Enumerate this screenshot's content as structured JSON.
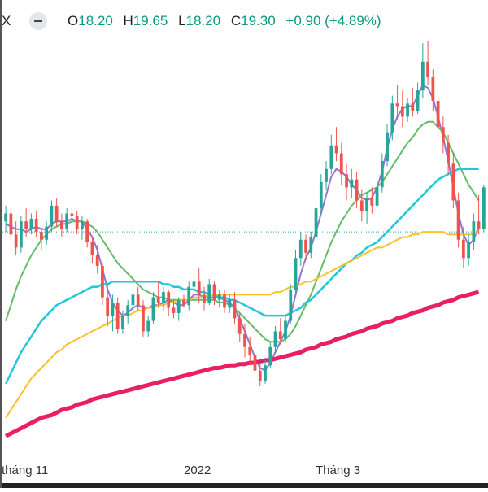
{
  "legend": {
    "symbol_tail": "X",
    "open_label": "O",
    "open": "18.20",
    "high_label": "H",
    "high": "19.65",
    "low_label": "L",
    "low": "18.20",
    "close_label": "C",
    "close": "19.30",
    "change": "+0.90 (+4.89%)",
    "up_color": "#089981"
  },
  "chart_data": {
    "type": "candlestick",
    "x_ticks": [
      "tháng 11",
      "2022",
      "Tháng 3"
    ],
    "price_guide": 15.2,
    "colors": {
      "up": "#26a69a",
      "down": "#ef5350",
      "ma_short": "#9575cd",
      "ma_20": "#66bb6a",
      "ma_50": "#26c6da",
      "ma_100": "#fbc02d",
      "ma_200": "#e91e63"
    },
    "ylim": [
      6.6,
      22.5
    ],
    "candles": [
      {
        "o": 15.6,
        "h": 16.2,
        "l": 15.2,
        "c": 15.9
      },
      {
        "o": 15.9,
        "h": 16.1,
        "l": 14.9,
        "c": 15.1
      },
      {
        "o": 15.1,
        "h": 15.6,
        "l": 14.3,
        "c": 14.6
      },
      {
        "o": 14.6,
        "h": 15.8,
        "l": 14.4,
        "c": 15.6
      },
      {
        "o": 15.6,
        "h": 16.1,
        "l": 15.0,
        "c": 15.3
      },
      {
        "o": 15.3,
        "h": 15.9,
        "l": 15.1,
        "c": 15.7
      },
      {
        "o": 15.7,
        "h": 16.0,
        "l": 15.0,
        "c": 15.2
      },
      {
        "o": 15.2,
        "h": 15.4,
        "l": 14.5,
        "c": 14.9
      },
      {
        "o": 14.9,
        "h": 15.6,
        "l": 14.7,
        "c": 15.4
      },
      {
        "o": 15.4,
        "h": 16.4,
        "l": 15.2,
        "c": 16.2
      },
      {
        "o": 16.2,
        "h": 16.5,
        "l": 15.4,
        "c": 15.6
      },
      {
        "o": 15.6,
        "h": 15.9,
        "l": 15.0,
        "c": 15.3
      },
      {
        "o": 15.3,
        "h": 16.1,
        "l": 15.2,
        "c": 15.9
      },
      {
        "o": 15.9,
        "h": 16.2,
        "l": 15.5,
        "c": 15.8
      },
      {
        "o": 15.8,
        "h": 16.0,
        "l": 15.1,
        "c": 15.3
      },
      {
        "o": 15.3,
        "h": 15.8,
        "l": 14.9,
        "c": 15.6
      },
      {
        "o": 15.6,
        "h": 15.7,
        "l": 14.6,
        "c": 14.8
      },
      {
        "o": 14.8,
        "h": 15.0,
        "l": 14.0,
        "c": 14.3
      },
      {
        "o": 14.3,
        "h": 14.7,
        "l": 13.6,
        "c": 13.9
      },
      {
        "o": 13.9,
        "h": 14.0,
        "l": 12.4,
        "c": 12.7
      },
      {
        "o": 12.7,
        "h": 13.2,
        "l": 11.6,
        "c": 12.0
      },
      {
        "o": 12.0,
        "h": 12.8,
        "l": 11.4,
        "c": 12.5
      },
      {
        "o": 12.5,
        "h": 12.7,
        "l": 11.3,
        "c": 11.5
      },
      {
        "o": 11.5,
        "h": 12.2,
        "l": 11.3,
        "c": 12.0
      },
      {
        "o": 12.0,
        "h": 12.6,
        "l": 11.7,
        "c": 12.4
      },
      {
        "o": 12.4,
        "h": 13.0,
        "l": 12.2,
        "c": 12.8
      },
      {
        "o": 12.8,
        "h": 13.1,
        "l": 12.2,
        "c": 12.4
      },
      {
        "o": 12.4,
        "h": 12.6,
        "l": 11.2,
        "c": 11.4
      },
      {
        "o": 11.4,
        "h": 12.0,
        "l": 11.2,
        "c": 11.8
      },
      {
        "o": 11.8,
        "h": 12.9,
        "l": 11.7,
        "c": 12.7
      },
      {
        "o": 12.7,
        "h": 13.3,
        "l": 12.3,
        "c": 12.5
      },
      {
        "o": 12.5,
        "h": 13.1,
        "l": 12.2,
        "c": 12.9
      },
      {
        "o": 12.9,
        "h": 13.0,
        "l": 12.0,
        "c": 12.3
      },
      {
        "o": 12.3,
        "h": 12.6,
        "l": 11.9,
        "c": 12.1
      },
      {
        "o": 12.1,
        "h": 12.7,
        "l": 11.8,
        "c": 12.6
      },
      {
        "o": 12.6,
        "h": 12.8,
        "l": 12.3,
        "c": 12.4
      },
      {
        "o": 12.4,
        "h": 13.3,
        "l": 12.2,
        "c": 13.1
      },
      {
        "o": 13.1,
        "h": 15.5,
        "l": 12.8,
        "c": 13.3
      },
      {
        "o": 13.3,
        "h": 13.8,
        "l": 12.5,
        "c": 12.8
      },
      {
        "o": 12.8,
        "h": 13.1,
        "l": 12.2,
        "c": 12.5
      },
      {
        "o": 12.5,
        "h": 13.4,
        "l": 12.4,
        "c": 13.2
      },
      {
        "o": 13.2,
        "h": 13.3,
        "l": 12.4,
        "c": 12.6
      },
      {
        "o": 12.6,
        "h": 13.0,
        "l": 12.3,
        "c": 12.8
      },
      {
        "o": 12.8,
        "h": 13.0,
        "l": 12.1,
        "c": 12.3
      },
      {
        "o": 12.3,
        "h": 12.8,
        "l": 12.1,
        "c": 12.6
      },
      {
        "o": 12.6,
        "h": 12.9,
        "l": 11.7,
        "c": 11.9
      },
      {
        "o": 11.9,
        "h": 12.1,
        "l": 11.0,
        "c": 11.3
      },
      {
        "o": 11.3,
        "h": 11.7,
        "l": 10.4,
        "c": 10.8
      },
      {
        "o": 10.8,
        "h": 11.2,
        "l": 10.1,
        "c": 10.5
      },
      {
        "o": 10.5,
        "h": 10.7,
        "l": 9.6,
        "c": 9.9
      },
      {
        "o": 9.9,
        "h": 10.2,
        "l": 9.3,
        "c": 9.5
      },
      {
        "o": 9.5,
        "h": 10.3,
        "l": 9.4,
        "c": 10.1
      },
      {
        "o": 10.1,
        "h": 11.0,
        "l": 10.0,
        "c": 10.8
      },
      {
        "o": 10.8,
        "h": 11.6,
        "l": 10.6,
        "c": 11.4
      },
      {
        "o": 11.4,
        "h": 11.9,
        "l": 10.9,
        "c": 11.1
      },
      {
        "o": 11.1,
        "h": 12.0,
        "l": 11.0,
        "c": 11.8
      },
      {
        "o": 11.8,
        "h": 13.2,
        "l": 11.7,
        "c": 13.0
      },
      {
        "o": 13.0,
        "h": 14.5,
        "l": 12.8,
        "c": 14.2
      },
      {
        "o": 14.2,
        "h": 15.2,
        "l": 13.9,
        "c": 14.9
      },
      {
        "o": 14.9,
        "h": 15.1,
        "l": 14.1,
        "c": 14.4
      },
      {
        "o": 14.4,
        "h": 15.2,
        "l": 14.2,
        "c": 15.0
      },
      {
        "o": 15.0,
        "h": 16.4,
        "l": 14.9,
        "c": 16.1
      },
      {
        "o": 16.1,
        "h": 17.4,
        "l": 15.9,
        "c": 17.1
      },
      {
        "o": 17.1,
        "h": 17.9,
        "l": 16.8,
        "c": 17.6
      },
      {
        "o": 17.6,
        "h": 18.9,
        "l": 17.4,
        "c": 18.5
      },
      {
        "o": 18.5,
        "h": 19.2,
        "l": 17.9,
        "c": 18.2
      },
      {
        "o": 18.2,
        "h": 18.6,
        "l": 17.0,
        "c": 17.4
      },
      {
        "o": 17.4,
        "h": 17.8,
        "l": 16.4,
        "c": 16.9
      },
      {
        "o": 16.9,
        "h": 17.6,
        "l": 16.5,
        "c": 17.2
      },
      {
        "o": 17.2,
        "h": 17.5,
        "l": 16.1,
        "c": 16.4
      },
      {
        "o": 16.4,
        "h": 16.8,
        "l": 15.6,
        "c": 16.0
      },
      {
        "o": 16.0,
        "h": 16.7,
        "l": 15.5,
        "c": 16.5
      },
      {
        "o": 16.5,
        "h": 16.9,
        "l": 15.9,
        "c": 16.2
      },
      {
        "o": 16.2,
        "h": 17.1,
        "l": 16.1,
        "c": 16.9
      },
      {
        "o": 16.9,
        "h": 18.2,
        "l": 16.7,
        "c": 17.9
      },
      {
        "o": 17.9,
        "h": 19.3,
        "l": 17.7,
        "c": 19.0
      },
      {
        "o": 19.0,
        "h": 20.4,
        "l": 18.7,
        "c": 20.1
      },
      {
        "o": 20.1,
        "h": 20.8,
        "l": 19.5,
        "c": 20.0
      },
      {
        "o": 20.0,
        "h": 20.6,
        "l": 19.2,
        "c": 19.6
      },
      {
        "o": 19.6,
        "h": 20.3,
        "l": 19.4,
        "c": 20.1
      },
      {
        "o": 20.1,
        "h": 20.7,
        "l": 19.6,
        "c": 19.8
      },
      {
        "o": 19.8,
        "h": 20.9,
        "l": 19.7,
        "c": 20.6
      },
      {
        "o": 20.6,
        "h": 22.4,
        "l": 20.3,
        "c": 21.7
      },
      {
        "o": 21.7,
        "h": 22.5,
        "l": 20.8,
        "c": 21.1
      },
      {
        "o": 21.1,
        "h": 21.4,
        "l": 19.8,
        "c": 20.2
      },
      {
        "o": 20.2,
        "h": 20.5,
        "l": 18.9,
        "c": 19.2
      },
      {
        "o": 19.2,
        "h": 19.6,
        "l": 18.2,
        "c": 18.6
      },
      {
        "o": 18.6,
        "h": 18.9,
        "l": 17.4,
        "c": 17.8
      },
      {
        "o": 17.8,
        "h": 18.2,
        "l": 16.1,
        "c": 16.4
      },
      {
        "o": 16.4,
        "h": 16.7,
        "l": 14.6,
        "c": 14.9
      },
      {
        "o": 14.9,
        "h": 15.4,
        "l": 13.8,
        "c": 14.2
      },
      {
        "o": 14.2,
        "h": 15.1,
        "l": 13.9,
        "c": 14.8
      },
      {
        "o": 14.8,
        "h": 15.9,
        "l": 14.5,
        "c": 15.6
      },
      {
        "o": 15.6,
        "h": 16.6,
        "l": 15.1,
        "c": 15.3
      },
      {
        "o": 15.3,
        "h": 17.0,
        "l": 15.2,
        "c": 16.9
      }
    ],
    "indicators": [
      {
        "id": "ma_short",
        "width": 2,
        "values": [
          15.5,
          15.4,
          15.3,
          15.3,
          15.2,
          15.3,
          15.4,
          15.3,
          15.3,
          15.5,
          15.6,
          15.6,
          15.6,
          15.7,
          15.6,
          15.6,
          15.3,
          15.0,
          14.5,
          13.8,
          13.0,
          12.5,
          12.2,
          12.0,
          12.1,
          12.3,
          12.4,
          12.3,
          12.3,
          12.4,
          12.4,
          12.5,
          12.6,
          12.5,
          12.4,
          12.4,
          12.6,
          12.8,
          12.8,
          12.7,
          12.7,
          12.7,
          12.7,
          12.6,
          12.5,
          12.3,
          11.9,
          11.4,
          10.9,
          10.4,
          10.0,
          9.9,
          10.2,
          10.6,
          11.0,
          11.4,
          12.0,
          12.8,
          13.6,
          14.2,
          14.6,
          15.2,
          15.9,
          16.6,
          17.3,
          17.6,
          17.5,
          17.3,
          17.0,
          16.8,
          16.5,
          16.4,
          16.5,
          16.9,
          17.5,
          18.4,
          19.1,
          19.6,
          19.9,
          20.0,
          20.0,
          20.4,
          20.8,
          20.7,
          20.3,
          19.6,
          18.8,
          17.9,
          16.9,
          15.9,
          15.1,
          14.7,
          14.9,
          15.4
        ]
      },
      {
        "id": "ma_20",
        "width": 2,
        "values": [
          11.8,
          12.4,
          13.0,
          13.5,
          13.9,
          14.3,
          14.6,
          14.9,
          15.1,
          15.3,
          15.4,
          15.5,
          15.5,
          15.6,
          15.6,
          15.6,
          15.5,
          15.4,
          15.2,
          14.9,
          14.6,
          14.3,
          14.0,
          13.8,
          13.6,
          13.4,
          13.2,
          13.0,
          12.9,
          12.8,
          12.7,
          12.7,
          12.6,
          12.6,
          12.6,
          12.6,
          12.6,
          12.6,
          12.6,
          12.6,
          12.6,
          12.6,
          12.5,
          12.5,
          12.4,
          12.3,
          12.1,
          11.9,
          11.7,
          11.5,
          11.3,
          11.1,
          11.0,
          11.0,
          11.0,
          11.1,
          11.3,
          11.6,
          12.0,
          12.4,
          12.8,
          13.3,
          13.8,
          14.3,
          14.8,
          15.2,
          15.6,
          15.9,
          16.2,
          16.4,
          16.6,
          16.7,
          16.8,
          16.9,
          17.1,
          17.4,
          17.7,
          18.0,
          18.3,
          18.6,
          18.8,
          19.1,
          19.3,
          19.4,
          19.4,
          19.2,
          19.0,
          18.6,
          18.2,
          17.8,
          17.4,
          17.0,
          16.7,
          16.4
        ]
      },
      {
        "id": "ma_50",
        "width": 2.5,
        "values": [
          9.4,
          9.8,
          10.2,
          10.6,
          10.9,
          11.2,
          11.5,
          11.8,
          12.0,
          12.2,
          12.4,
          12.5,
          12.6,
          12.7,
          12.8,
          12.9,
          13.0,
          13.1,
          13.1,
          13.2,
          13.2,
          13.3,
          13.3,
          13.3,
          13.3,
          13.3,
          13.3,
          13.3,
          13.3,
          13.3,
          13.3,
          13.2,
          13.2,
          13.1,
          13.1,
          13.0,
          13.0,
          13.0,
          12.9,
          12.9,
          12.8,
          12.8,
          12.7,
          12.7,
          12.6,
          12.6,
          12.5,
          12.4,
          12.3,
          12.2,
          12.1,
          12.0,
          12.0,
          12.0,
          12.0,
          12.0,
          12.1,
          12.2,
          12.3,
          12.5,
          12.6,
          12.8,
          13.0,
          13.2,
          13.4,
          13.6,
          13.8,
          14.0,
          14.1,
          14.3,
          14.4,
          14.6,
          14.7,
          14.8,
          15.0,
          15.2,
          15.4,
          15.6,
          15.8,
          16.0,
          16.2,
          16.4,
          16.6,
          16.8,
          17.0,
          17.2,
          17.3,
          17.4,
          17.5,
          17.6,
          17.6,
          17.6,
          17.6,
          17.6
        ]
      },
      {
        "id": "ma_100",
        "width": 2,
        "values": [
          8.1,
          8.4,
          8.7,
          9.0,
          9.3,
          9.6,
          9.8,
          10.0,
          10.2,
          10.4,
          10.6,
          10.7,
          10.9,
          11.0,
          11.1,
          11.2,
          11.3,
          11.4,
          11.5,
          11.6,
          11.7,
          11.8,
          11.9,
          12.0,
          12.0,
          12.1,
          12.2,
          12.2,
          12.3,
          12.3,
          12.4,
          12.4,
          12.5,
          12.5,
          12.6,
          12.6,
          12.6,
          12.7,
          12.7,
          12.7,
          12.8,
          12.8,
          12.8,
          12.8,
          12.8,
          12.8,
          12.8,
          12.8,
          12.8,
          12.8,
          12.8,
          12.8,
          12.8,
          12.9,
          12.9,
          13.0,
          13.1,
          13.1,
          13.2,
          13.3,
          13.3,
          13.4,
          13.5,
          13.6,
          13.7,
          13.8,
          13.9,
          14.0,
          14.1,
          14.2,
          14.3,
          14.4,
          14.5,
          14.6,
          14.6,
          14.7,
          14.8,
          14.9,
          15.0,
          15.0,
          15.1,
          15.1,
          15.2,
          15.2,
          15.2,
          15.2,
          15.2,
          15.1,
          15.1,
          15.1,
          15.1,
          15.1,
          15.1,
          15.2
        ]
      },
      {
        "id": "ma_200",
        "width": 5,
        "values": [
          7.4,
          7.5,
          7.6,
          7.7,
          7.8,
          7.9,
          8.0,
          8.1,
          8.15,
          8.2,
          8.3,
          8.4,
          8.45,
          8.5,
          8.6,
          8.65,
          8.7,
          8.8,
          8.85,
          8.9,
          8.95,
          9.0,
          9.05,
          9.1,
          9.15,
          9.2,
          9.25,
          9.3,
          9.35,
          9.4,
          9.45,
          9.5,
          9.55,
          9.6,
          9.65,
          9.7,
          9.75,
          9.8,
          9.85,
          9.9,
          9.95,
          10.0,
          10.0,
          10.05,
          10.1,
          10.1,
          10.15,
          10.15,
          10.2,
          10.2,
          10.25,
          10.3,
          10.3,
          10.35,
          10.4,
          10.45,
          10.5,
          10.55,
          10.6,
          10.7,
          10.75,
          10.8,
          10.9,
          10.95,
          11.0,
          11.1,
          11.15,
          11.2,
          11.3,
          11.35,
          11.4,
          11.5,
          11.55,
          11.6,
          11.7,
          11.75,
          11.8,
          11.9,
          11.95,
          12.0,
          12.1,
          12.15,
          12.2,
          12.3,
          12.35,
          12.4,
          12.5,
          12.55,
          12.6,
          12.7,
          12.75,
          12.8,
          12.85,
          12.9
        ]
      }
    ]
  }
}
